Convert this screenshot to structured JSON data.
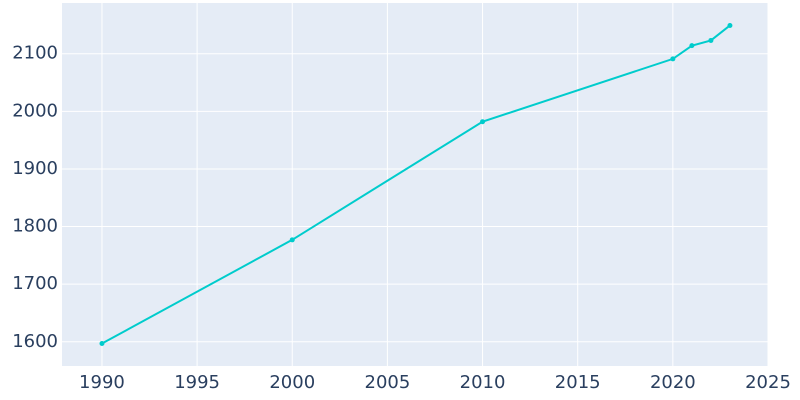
{
  "chart_data": {
    "type": "line",
    "x": [
      1990,
      2000,
      2010,
      2020,
      2021,
      2022,
      2023
    ],
    "series": [
      {
        "color": "#00cccc",
        "values": [
          1597,
          1777,
          1982,
          2091,
          2114,
          2123,
          2149
        ]
      }
    ],
    "xlim": [
      1987.9,
      2025
    ],
    "ylim": [
      1558,
      2188
    ],
    "xticks": [
      1990,
      1995,
      2000,
      2005,
      2010,
      2015,
      2020,
      2025
    ],
    "yticks": [
      1600,
      1700,
      1800,
      1900,
      2000,
      2100
    ],
    "grid": true
  }
}
